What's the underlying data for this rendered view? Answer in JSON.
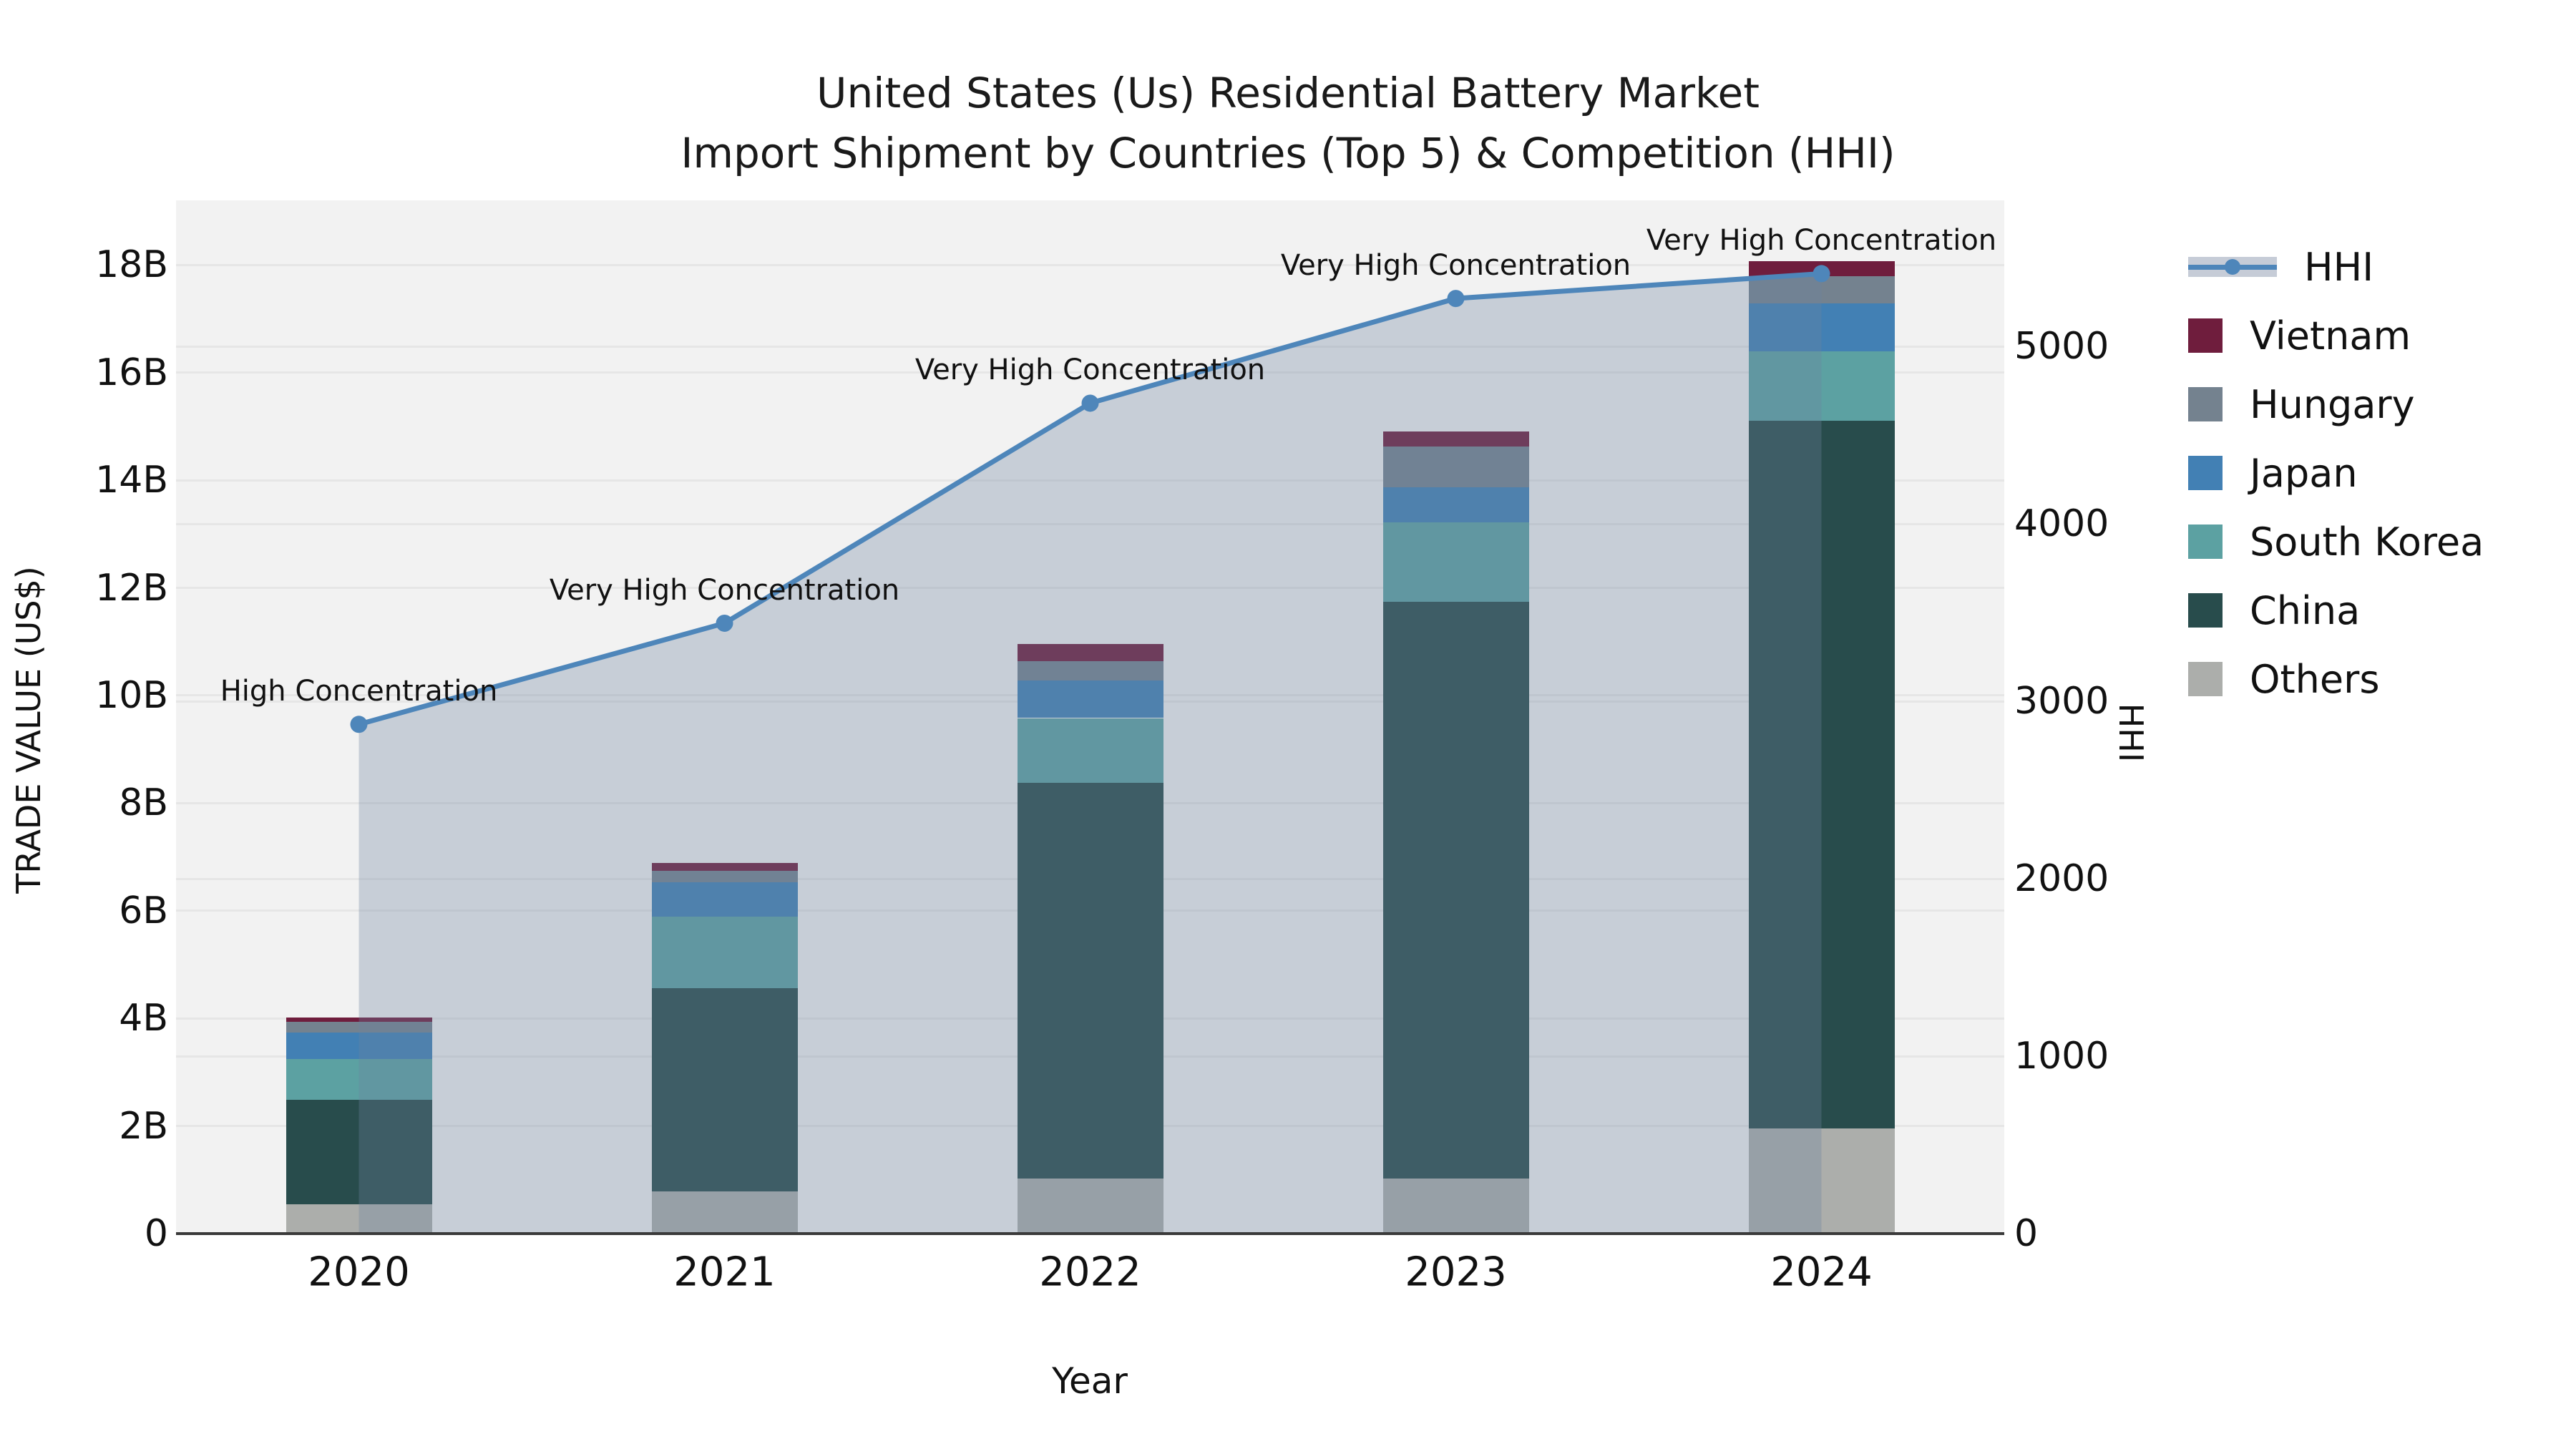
{
  "title": {
    "line1": "United States (Us) Residential Battery Market",
    "line2": "Import Shipment by Countries (Top 5) & Competition (HHI)"
  },
  "axes": {
    "left_label": "TRADE VALUE (US$)",
    "right_label": "HHI",
    "x_label": "Year",
    "left_ticks": [
      "0",
      "2B",
      "4B",
      "6B",
      "8B",
      "10B",
      "12B",
      "14B",
      "16B",
      "18B"
    ],
    "left_tick_values": [
      0,
      2,
      4,
      6,
      8,
      10,
      12,
      14,
      16,
      18
    ],
    "right_ticks": [
      "0",
      "1000",
      "2000",
      "3000",
      "4000",
      "5000"
    ],
    "right_tick_values": [
      0,
      1000,
      2000,
      3000,
      4000,
      5000
    ],
    "left_axis_max": 19.2,
    "right_axis_max": 5823
  },
  "colors": {
    "plot_bg": "#f2f2f2",
    "grid": "#e6e6e6",
    "axis_line": "#3a3a3a",
    "hhi_line": "#4e86ba",
    "area_fill": "rgba(110,130,160,0.32)"
  },
  "legend": {
    "items": [
      {
        "label": "HHI",
        "type": "line",
        "color": "#4e86ba"
      },
      {
        "label": "Vietnam",
        "type": "swatch",
        "color": "#6f1d3d"
      },
      {
        "label": "Hungary",
        "type": "swatch",
        "color": "#74828f"
      },
      {
        "label": "Japan",
        "type": "swatch",
        "color": "#4280b4"
      },
      {
        "label": "South Korea",
        "type": "swatch",
        "color": "#5ca1a2"
      },
      {
        "label": "China",
        "type": "swatch",
        "color": "#284c4c"
      },
      {
        "label": "Others",
        "type": "swatch",
        "color": "#acaeab"
      }
    ]
  },
  "chart_data": {
    "type": "bar",
    "subtype": "stacked-bars-with-line-overlay",
    "title": "United States (Us) Residential Battery Market Import Shipment by Countries (Top 5) & Competition (HHI)",
    "xlabel": "Year",
    "ylabel_left": "TRADE VALUE (US$)",
    "ylabel_right": "HHI",
    "ylim_left_billions": [
      0,
      19.2
    ],
    "ylim_right": [
      0,
      5823
    ],
    "grid": "horizontal",
    "legend_position": "right",
    "categories": [
      "2020",
      "2021",
      "2022",
      "2023",
      "2024"
    ],
    "value_unit": "billions USD",
    "stack_order_bottom_to_top": [
      "Others",
      "China",
      "South Korea",
      "Japan",
      "Hungary",
      "Vietnam"
    ],
    "series": [
      {
        "name": "Others",
        "color": "#acaeab",
        "values": [
          0.55,
          0.79,
          1.03,
          1.03,
          1.95
        ]
      },
      {
        "name": "China",
        "color": "#284c4c",
        "values": [
          1.93,
          3.77,
          7.35,
          10.71,
          13.15
        ]
      },
      {
        "name": "South Korea",
        "color": "#5ca1a2",
        "values": [
          0.76,
          1.33,
          1.2,
          1.48,
          1.3
        ]
      },
      {
        "name": "Japan",
        "color": "#4280b4",
        "values": [
          0.49,
          0.64,
          0.7,
          0.65,
          0.89
        ]
      },
      {
        "name": "Hungary",
        "color": "#74828f",
        "values": [
          0.2,
          0.21,
          0.36,
          0.76,
          0.5
        ]
      },
      {
        "name": "Vietnam",
        "color": "#6f1d3d",
        "values": [
          0.08,
          0.15,
          0.32,
          0.27,
          0.28
        ]
      }
    ],
    "bar_totals_billions": [
      4.01,
      6.89,
      10.96,
      14.9,
      18.07
    ],
    "line_series": {
      "name": "HHI",
      "axis": "right",
      "color": "#4e86ba",
      "area_fill": "rgba(110,130,160,0.32)",
      "values": [
        2870,
        3440,
        4680,
        5270,
        5410
      ]
    },
    "annotations": [
      "High Concentration",
      "Very High Concentration",
      "Very High Concentration",
      "Very High Concentration",
      "Very High Concentration"
    ]
  }
}
